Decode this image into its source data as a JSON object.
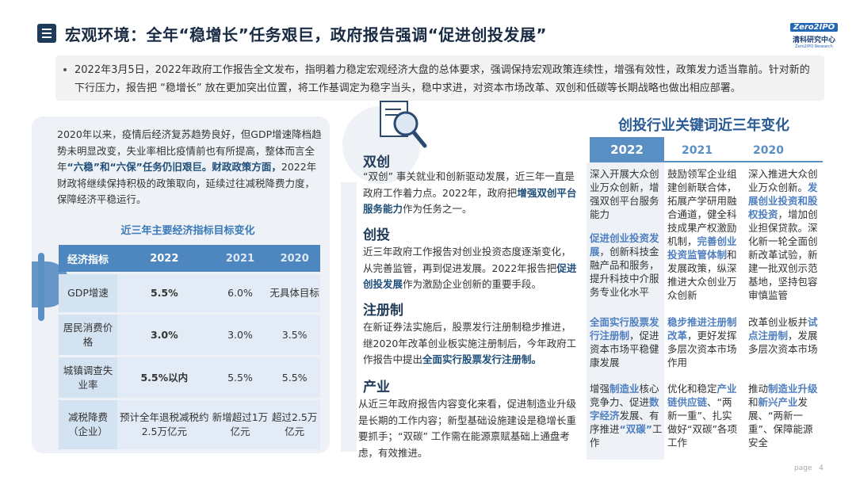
{
  "header": {
    "title": "宏观环境：全年“稳增长”任务艰巨，政府报告强调“促进创投发展”",
    "logo_line1": "Zero2IPO",
    "logo_line2": "清科研究中心",
    "logo_line3": "Zero2IPO Research"
  },
  "intro": "2022年3月5日，2022年政府工作报告全文发布，指明着力稳定宏观经济大盘的总体要求，强调保持宏观政策连续性，增强有效性，政策发力适当靠前。针对新的下行压力，报告把 “稳增长” 放在更加突出位置，将工作基调定为稳字当头，稳中求进，对资本市场改革、双创和低碳等长期战略也做出相应部署。",
  "left": {
    "para_a": "2020年以来，疫情后经济复苏趋势良好，但GDP增速降档趋势未明显改变，失业率相比疫情前也有所提高，整体而言全年",
    "para_b": "“六稳”和“六保”",
    "para_c": "任务仍旧艰巨。财政政策方面，",
    "para_d": "2022年财政将继续保持积极的政策取向，延续过往减税降费力度，保障经济平稳运行。",
    "table_title": "近三年主要经济指标目标变化",
    "table": {
      "headers": [
        "经济指标",
        "2022",
        "2021",
        "2020"
      ],
      "rows": [
        [
          "GDP增速",
          "5.5%",
          "6.0%",
          "无具体目标"
        ],
        [
          "居民消费价格",
          "3.0%",
          "3.0%",
          "3.5%"
        ],
        [
          "城镇调查失业率",
          "5.5%以内",
          "5.5%",
          "5.5%"
        ],
        [
          "减税降费（企业）",
          "预计全年退税减税约2.5万亿元",
          "新增超过1万亿元",
          "超过2.5万亿元"
        ]
      ]
    }
  },
  "middle": {
    "s1_title": "双创",
    "s1_a": "“双创” 事关就业和创新驱动发展，近三年一直是政府工作着力点。2022年，政府把",
    "s1_b": "增强双创平台服务能力",
    "s1_c": "作为任务之一。",
    "s2_title": "创投",
    "s2_a": "近三年政府工作报告对创业投资态度逐渐变化，从完善监管，再到促进发展。2022年报告把",
    "s2_b": "促进创投发展",
    "s2_c": "作为激励企业创新的重要手段。",
    "s3_title": "注册制",
    "s3_a": "在新证券法实施后，股票发行注册制稳步推进，继2020年改革创业板实施注册制后，今年政府工作报告中提出",
    "s3_b": "全面实行股票发行注册制。",
    "s4_title": "产业",
    "s4_a": "从近三年政府报告内容变化来看，促进制造业升级是长期的工作内容；新型基础设施建设是稳增长重要抓手；“双碳” 工作需在能源禀赋基础上通盘考虑，有效推进。"
  },
  "right": {
    "title": "创投行业关键词近三年变化",
    "years": [
      "2022",
      "2021",
      "2020"
    ],
    "r1": {
      "c2022_a": "深入开展大众创业万众创新，",
      "c2022_b": "增强双创平台服务能力",
      "c2021": "鼓励领军企业组建创新联合体，拓展产学研用融合通道，健全科技成果产权激励机制，",
      "c2021_b": "完善创业投资监管体制",
      "c2021_c": "和发展政策，纵深推进大众创业万众创新",
      "c2020_a": "深入推进大众创业万众创新。",
      "c2020_b": "发展创业投资和股权投资",
      "c2020_c": "，增加创业担保贷款。深化新一轮全面创新改革试验，新建一批双创示范基地，坚持包容审慎监管"
    },
    "r2": {
      "c2022_a": "促进创业投资发展",
      "c2022_b": "，创新科技金融产品和服务，提升科技中介服务专业化水平"
    },
    "r3": {
      "c2022_a": "全面实行股票发行注册制",
      "c2022_b": "，促进资本市场平稳健康发展",
      "c2021_a": "稳步推进注册制改革",
      "c2021_b": "，更好发挥多层次资本市场作用",
      "c2020_a": "改革创业板并",
      "c2020_b": "试点注册制",
      "c2020_c": "，发展多层次资本市场"
    },
    "r4": {
      "c2022_a": "增强",
      "c2022_b": "制造业",
      "c2022_c": "核心竞争力、促进",
      "c2022_d": "数字经济",
      "c2022_e": "发展、有序推进",
      "c2022_f": "“双碳”",
      "c2022_g": "工作",
      "c2021_a": "优化和稳定",
      "c2021_b": "产业链供应链",
      "c2021_c": "、“两新一重”、扎实做好“双碳”各项工作",
      "c2020_a": "推动",
      "c2020_b": "制造业升级",
      "c2020_c": "和",
      "c2020_d": "新兴产业",
      "c2020_e": "发展、“两新一重”、保障能源安全"
    }
  },
  "footer": {
    "page_label": "page",
    "page_num": "4"
  }
}
